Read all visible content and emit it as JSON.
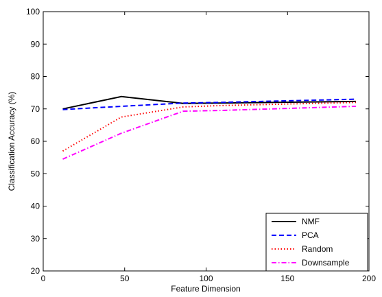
{
  "chart_data": {
    "type": "line",
    "xlabel": "Feature Dimension",
    "ylabel": "Classification Accuracy (%)",
    "xlim": [
      0,
      200
    ],
    "ylim": [
      20,
      100
    ],
    "xticks": [
      0,
      50,
      100,
      150,
      200
    ],
    "yticks": [
      20,
      30,
      40,
      50,
      60,
      70,
      80,
      90,
      100
    ],
    "grid": false,
    "legend_position": "bottom-right",
    "x": [
      12,
      48,
      86,
      108,
      192
    ],
    "series": [
      {
        "name": "NMF",
        "values": [
          70.0,
          73.8,
          71.7,
          71.8,
          72.3
        ],
        "color": "#000000",
        "dash": "solid"
      },
      {
        "name": "PCA",
        "values": [
          69.8,
          70.8,
          71.8,
          72.0,
          73.0
        ],
        "color": "#0000ff",
        "dash": "dashed"
      },
      {
        "name": "Random",
        "values": [
          57.0,
          67.5,
          70.6,
          71.0,
          72.0
        ],
        "color": "#ff0000",
        "dash": "dotted"
      },
      {
        "name": "Downsample",
        "values": [
          54.5,
          62.5,
          69.3,
          69.5,
          70.8
        ],
        "color": "#ff00ff",
        "dash": "dashdot"
      }
    ]
  }
}
